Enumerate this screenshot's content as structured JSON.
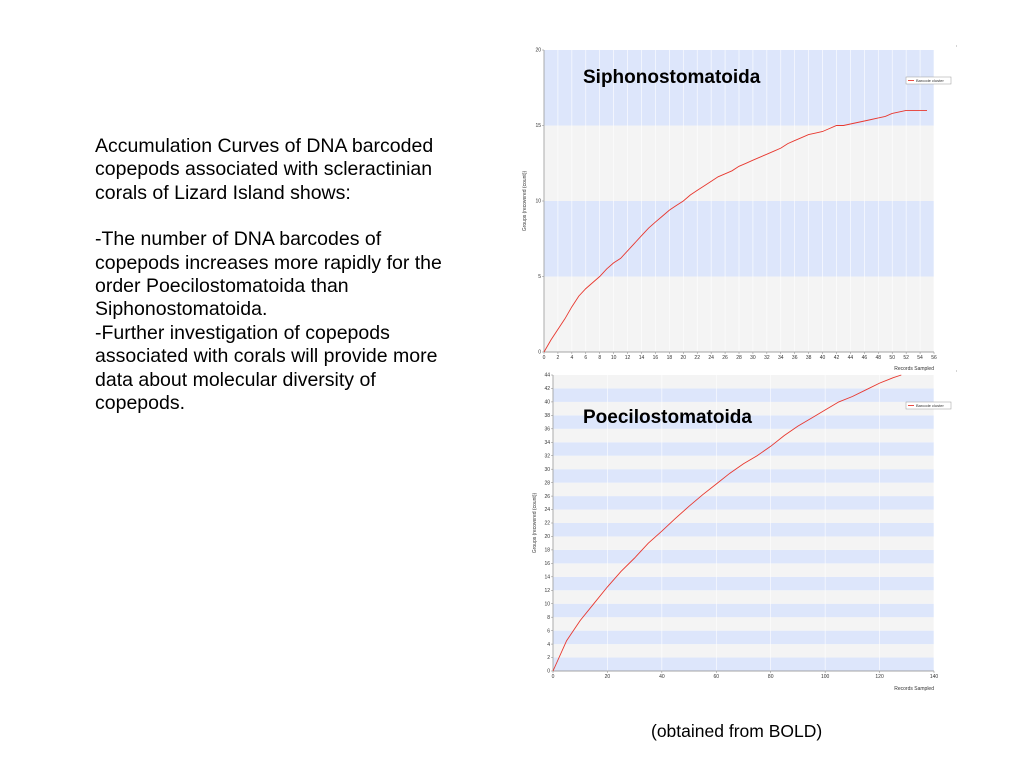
{
  "text": {
    "intro": "Accumulation Curves of DNA barcoded copepods associated with scleractinian corals of Lizard Island shows:",
    "point1": "-The number of DNA barcodes of copepods increases more rapidly for the order Poecilostomatoida than Siphonostomatoida.",
    "point2": "-Further investigation of copepods associated with corals will provide more data about molecular diversity of copepods."
  },
  "footer": "(obtained from BOLD)",
  "colors": {
    "band_blue": "#dde6fb",
    "band_gray": "#f4f4f4",
    "curve": "#e8382f",
    "axis": "#888888"
  },
  "chart_data": [
    {
      "type": "line",
      "title": "Siphonostomatoida",
      "xlabel": "Records Sampled",
      "ylabel": "Groups (recovered (count))",
      "xlim": [
        0,
        56
      ],
      "ylim": [
        0,
        20
      ],
      "xticks": [
        0,
        2,
        4,
        6,
        8,
        10,
        12,
        14,
        16,
        18,
        20,
        22,
        24,
        26,
        28,
        30,
        32,
        34,
        36,
        38,
        40,
        42,
        44,
        46,
        48,
        50,
        52,
        54,
        56
      ],
      "yticks": [
        0,
        5,
        10,
        15,
        20
      ],
      "legend": "Barcode cluster",
      "legend_position": "top-right",
      "series": [
        {
          "name": "Barcode cluster",
          "x": [
            0,
            1,
            2,
            3,
            4,
            5,
            6,
            7,
            8,
            9,
            10,
            11,
            12,
            13,
            14,
            15,
            16,
            17,
            18,
            19,
            20,
            21,
            22,
            23,
            24,
            25,
            26,
            27,
            28,
            29,
            30,
            31,
            32,
            33,
            34,
            35,
            36,
            37,
            38,
            39,
            40,
            41,
            42,
            43,
            44,
            45,
            46,
            47,
            48,
            49,
            50,
            51,
            52,
            53,
            54,
            55
          ],
          "y": [
            0,
            0.8,
            1.5,
            2.2,
            3.0,
            3.7,
            4.2,
            4.6,
            5.0,
            5.5,
            5.9,
            6.2,
            6.7,
            7.2,
            7.7,
            8.2,
            8.6,
            9.0,
            9.4,
            9.7,
            10.0,
            10.4,
            10.7,
            11.0,
            11.3,
            11.6,
            11.8,
            12.0,
            12.3,
            12.5,
            12.7,
            12.9,
            13.1,
            13.3,
            13.5,
            13.8,
            14.0,
            14.2,
            14.4,
            14.5,
            14.6,
            14.8,
            15.0,
            15.0,
            15.1,
            15.2,
            15.3,
            15.4,
            15.5,
            15.6,
            15.8,
            15.9,
            16.0,
            16.0,
            16.0,
            16.0
          ]
        }
      ],
      "grid": "alternating horizontal bands"
    },
    {
      "type": "line",
      "title": "Poecilostomatoida",
      "xlabel": "Records Sampled",
      "ylabel": "Groups (recovered (count))",
      "xlim": [
        0,
        140
      ],
      "ylim": [
        0,
        44
      ],
      "xticks": [
        0,
        20,
        40,
        60,
        80,
        100,
        120,
        140
      ],
      "yticks": [
        0,
        2,
        4,
        6,
        8,
        10,
        12,
        14,
        16,
        18,
        20,
        22,
        24,
        26,
        28,
        30,
        32,
        34,
        36,
        38,
        40,
        42,
        44
      ],
      "legend": "Barcode cluster",
      "legend_position": "top-right",
      "series": [
        {
          "name": "Barcode cluster",
          "x": [
            0,
            5,
            10,
            15,
            20,
            25,
            30,
            35,
            40,
            45,
            50,
            55,
            60,
            65,
            70,
            75,
            80,
            85,
            90,
            95,
            100,
            105,
            110,
            115,
            120,
            125,
            128
          ],
          "y": [
            0,
            4.5,
            7.5,
            10.0,
            12.5,
            14.8,
            16.8,
            19.0,
            20.8,
            22.7,
            24.5,
            26.2,
            27.8,
            29.4,
            30.8,
            32.0,
            33.4,
            35.0,
            36.4,
            37.6,
            38.8,
            40.0,
            40.8,
            41.8,
            42.8,
            43.6,
            44.0
          ]
        }
      ],
      "grid": "alternating horizontal bands"
    }
  ]
}
